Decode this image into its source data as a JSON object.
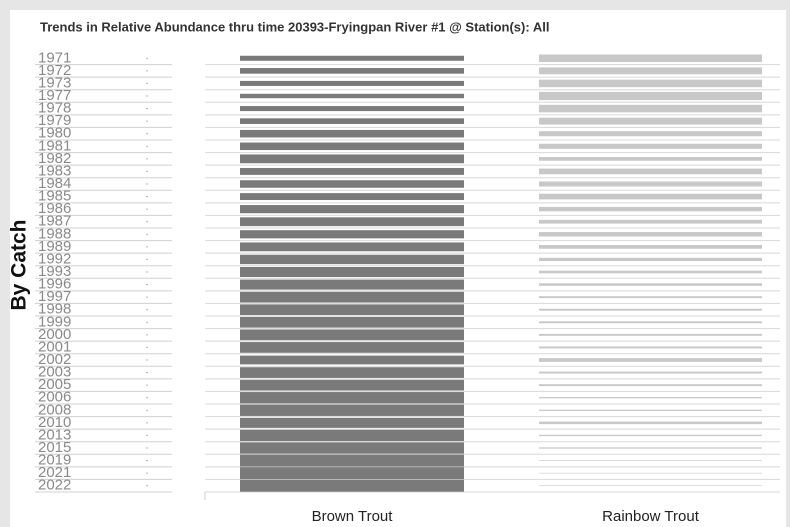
{
  "chart_data": {
    "type": "bar",
    "title": "Trends in Relative Abundance thru time 20393-Fryingpan River #1 @ Station(s): All",
    "y_label": "By Catch",
    "categories": [
      "1971",
      "1972",
      "1973",
      "1977",
      "1978",
      "1979",
      "1980",
      "1981",
      "1982",
      "1983",
      "1984",
      "1985",
      "1986",
      "1987",
      "1988",
      "1989",
      "1992",
      "1993",
      "1996",
      "1997",
      "1998",
      "1999",
      "2000",
      "2001",
      "2002",
      "2003",
      "2005",
      "2006",
      "2008",
      "2010",
      "2013",
      "2015",
      "2019",
      "2021",
      "2022"
    ],
    "series": [
      {
        "name": "Brown Trout",
        "color": "#7a7a7a",
        "values": [
          40,
          45,
          40,
          35,
          40,
          45,
          60,
          60,
          70,
          55,
          60,
          55,
          65,
          70,
          65,
          70,
          75,
          80,
          80,
          85,
          85,
          85,
          85,
          85,
          70,
          85,
          85,
          90,
          90,
          80,
          90,
          90,
          95,
          95,
          95
        ]
      },
      {
        "name": "Rainbow Trout",
        "color": "#c8c8c8",
        "values": [
          60,
          55,
          60,
          65,
          60,
          55,
          40,
          40,
          30,
          45,
          40,
          45,
          35,
          30,
          35,
          30,
          25,
          20,
          20,
          15,
          15,
          15,
          15,
          15,
          30,
          15,
          15,
          10,
          10,
          20,
          10,
          10,
          5,
          5,
          5
        ]
      }
    ],
    "ylim": [
      0,
      100
    ]
  }
}
